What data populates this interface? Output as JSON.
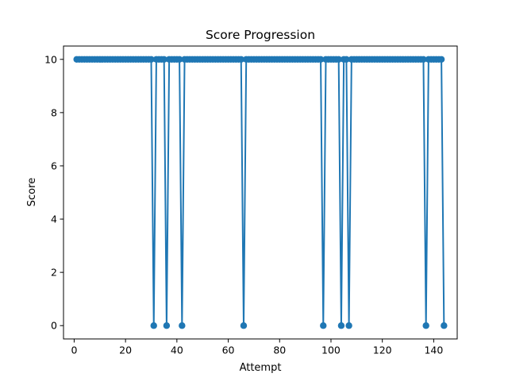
{
  "chart_data": {
    "type": "line",
    "title": "Score Progression",
    "xlabel": "Attempt",
    "ylabel": "Score",
    "xlim": [
      -4.15,
      149.15
    ],
    "ylim": [
      -0.5,
      10.5
    ],
    "xticks": [
      0,
      20,
      40,
      60,
      80,
      100,
      120,
      140
    ],
    "yticks": [
      0,
      2,
      4,
      6,
      8,
      10
    ],
    "grid": false,
    "legend": "none",
    "marker": "circle",
    "series": [
      {
        "color": "#1f77b4",
        "x_start": 1,
        "x_end": 144,
        "default_value": 10,
        "zero_attempts": [
          31,
          36,
          42,
          66,
          97,
          104,
          107,
          137,
          144
        ]
      }
    ]
  }
}
